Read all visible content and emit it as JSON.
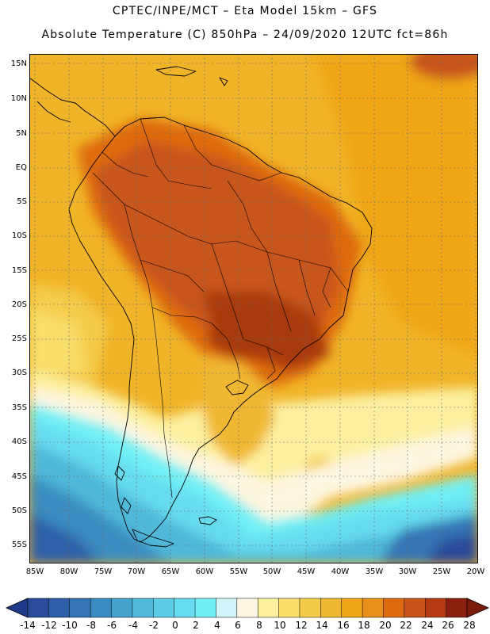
{
  "header": {
    "line1": "CPTEC/INPE/MCT  –  Eta Model 15km – GFS",
    "line2": "Absolute Temperature (C) 850hPa – 24/09/2020 12UTC fct=86h"
  },
  "map": {
    "lat_labels": [
      "15N",
      "10N",
      "5N",
      "EQ",
      "5S",
      "10S",
      "15S",
      "20S",
      "25S",
      "30S",
      "35S",
      "40S",
      "45S",
      "50S",
      "55S"
    ],
    "lon_labels": [
      "85W",
      "80W",
      "75W",
      "70W",
      "65W",
      "60W",
      "55W",
      "50W",
      "45W",
      "40W",
      "35W",
      "30W",
      "25W",
      "20W"
    ],
    "gridlines": "dotted",
    "colors": {
      "ocean_warm": "#f0b428",
      "continent_hot": "#c8541c",
      "core_hot": "#a83a10",
      "cold_south": "#3c78b4"
    }
  },
  "colorbar": {
    "labels": [
      "-14",
      "-12",
      "-10",
      "-8",
      "-6",
      "-4",
      "-2",
      "0",
      "2",
      "4",
      "6",
      "8",
      "10",
      "12",
      "14",
      "16",
      "18",
      "20",
      "22",
      "24",
      "26",
      "28"
    ],
    "colors": [
      "#2a4a9a",
      "#2e5ea8",
      "#3474b4",
      "#3a8cc0",
      "#44a2cc",
      "#50b8d8",
      "#5ccce4",
      "#66dcee",
      "#72f0f4",
      "#d0f4f8",
      "#fdf6e0",
      "#fcf0a0",
      "#f8de6a",
      "#f4cc4c",
      "#f0b832",
      "#eea618",
      "#e8901a",
      "#de6a10",
      "#c8541c",
      "#b43a12",
      "#8c2010"
    ]
  }
}
